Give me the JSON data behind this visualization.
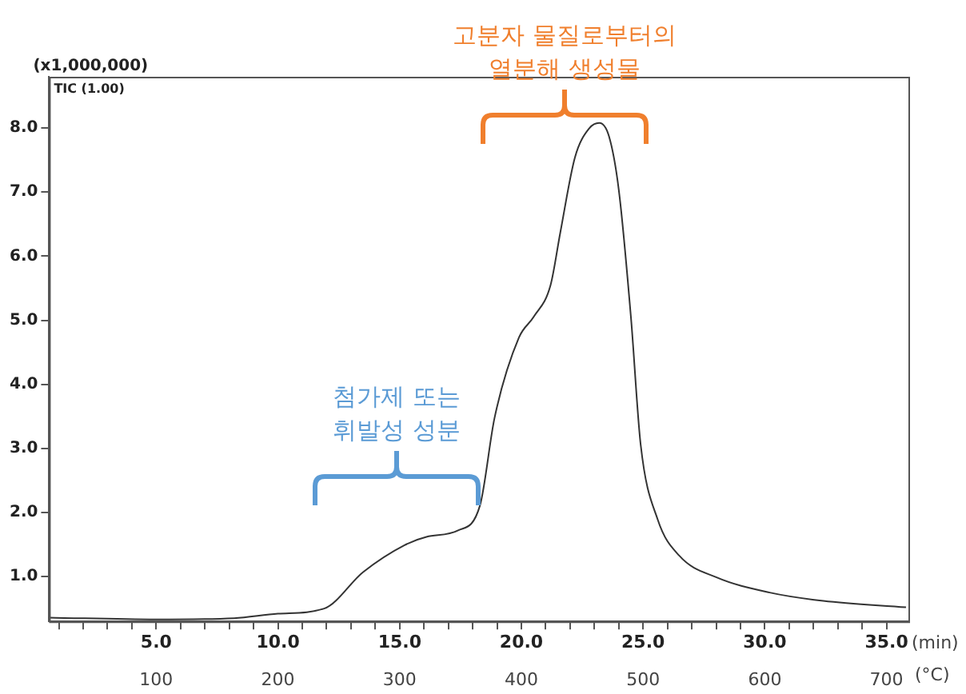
{
  "chart_data": {
    "type": "line",
    "ylabel": "(x1,000,000)",
    "xlabel": "(min)",
    "x2label": "(°C)",
    "annotations": [
      "TIC (1.00)",
      "고분자 물질로부터의\n열분해 생성물",
      {
        "text": "첨가제 또는\n휘발성 성분",
        "x": 18.3,
        "y": 2.11
      }
    ],
    "x": [
      0.6,
      5.0,
      8.2,
      10.0,
      11.9,
      13.5,
      15.2,
      16.1,
      17.4,
      18.3,
      18.9,
      19.9,
      20.5,
      21.2,
      21.6,
      22.2,
      22.8,
      23.2,
      23.6,
      24.0,
      24.5,
      24.9,
      25.6,
      26.5,
      28.0,
      30.2,
      32.4,
      35.8
    ],
    "series": [
      {
        "color": "#333333",
        "values": [
          0.36,
          0.33,
          0.35,
          0.42,
          0.5,
          1.07,
          1.49,
          1.62,
          1.72,
          2.11,
          3.48,
          4.73,
          5.05,
          5.55,
          6.37,
          7.54,
          8.0,
          8.08,
          7.87,
          7.04,
          5.05,
          3.06,
          1.89,
          1.32,
          0.99,
          0.75,
          0.62,
          0.52
        ]
      }
    ],
    "xlim": [
      0.6,
      35.9
    ],
    "xticks": [
      {
        "value": 1,
        "label": null
      },
      {
        "value": 2,
        "label": null
      },
      {
        "value": 3,
        "label": null
      },
      {
        "value": 4,
        "label": null
      },
      {
        "value": 5,
        "label": "5.0"
      },
      {
        "value": 6,
        "label": null
      },
      {
        "value": 7,
        "label": null
      },
      {
        "value": 8,
        "label": null
      },
      {
        "value": 9,
        "label": null
      },
      {
        "value": 10,
        "label": "10.0"
      },
      {
        "value": 11,
        "label": null
      },
      {
        "value": 12,
        "label": null
      },
      {
        "value": 13,
        "label": null
      },
      {
        "value": 14,
        "label": null
      },
      {
        "value": 15,
        "label": "15.0"
      },
      {
        "value": 16,
        "label": null
      },
      {
        "value": 17,
        "label": null
      },
      {
        "value": 18,
        "label": null
      },
      {
        "value": 19,
        "label": null
      },
      {
        "value": 20,
        "label": "20.0"
      },
      {
        "value": 21,
        "label": null
      },
      {
        "value": 22,
        "label": null
      },
      {
        "value": 23,
        "label": null
      },
      {
        "value": 24,
        "label": null
      },
      {
        "value": 25,
        "label": "25.0"
      },
      {
        "value": 26,
        "label": null
      },
      {
        "value": 27,
        "label": null
      },
      {
        "value": 28,
        "label": null
      },
      {
        "value": 29,
        "label": null
      },
      {
        "value": 30,
        "label": "30.0"
      },
      {
        "value": 31,
        "label": null
      },
      {
        "value": 32,
        "label": null
      },
      {
        "value": 33,
        "label": null
      },
      {
        "value": 34,
        "label": null
      },
      {
        "value": 35,
        "label": "35.0"
      }
    ],
    "x2lim": [
      12,
      718
    ],
    "x2ticks": [
      100,
      200,
      300,
      400,
      500,
      600,
      700
    ],
    "ylim": [
      0.3,
      8.8
    ],
    "yticks": [
      {
        "value": 1,
        "label": "1.0"
      },
      {
        "value": 2,
        "label": "2.0"
      },
      {
        "value": 3,
        "label": "3.0"
      },
      {
        "value": 4,
        "label": "4.0"
      },
      {
        "value": 5,
        "label": "5.0"
      },
      {
        "value": 6,
        "label": "6.0"
      },
      {
        "value": 7,
        "label": "7.0"
      },
      {
        "value": 8,
        "label": "8.0"
      }
    ],
    "grid": false,
    "legend": false,
    "marker": "none",
    "line_style": "solid"
  }
}
